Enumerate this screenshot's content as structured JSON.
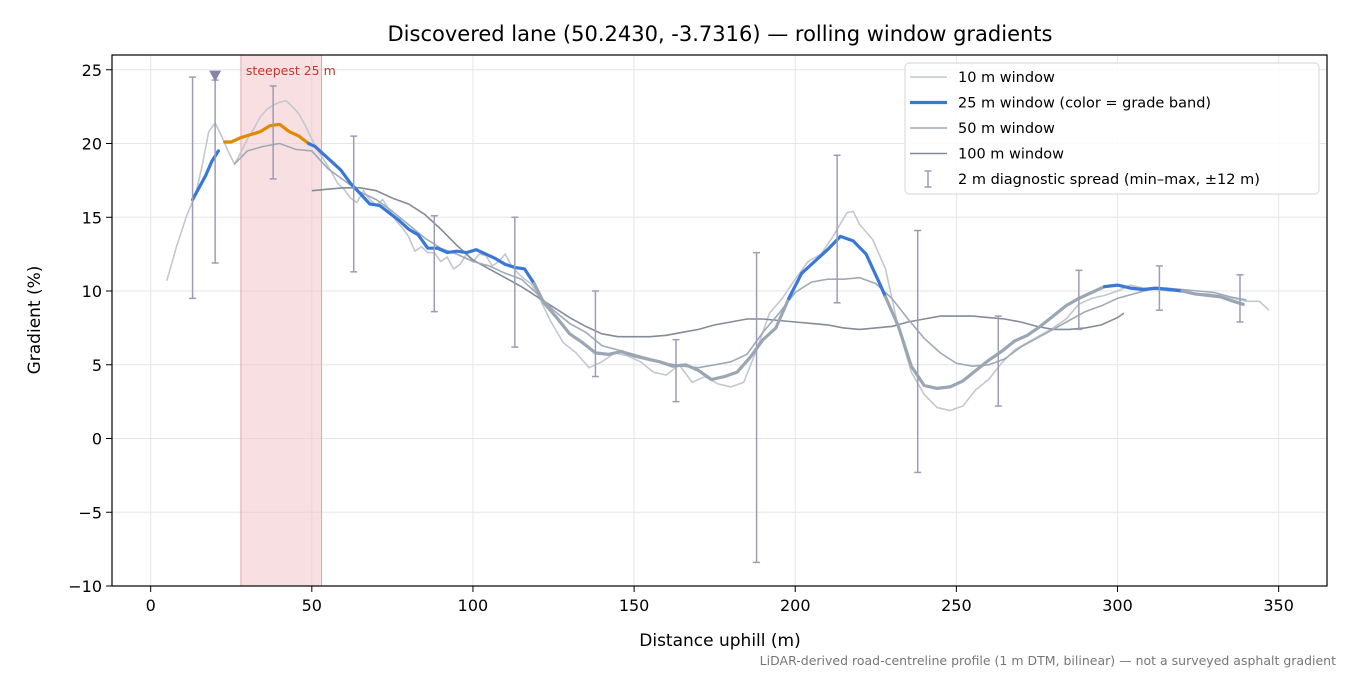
{
  "chart_data": {
    "type": "line",
    "title": "Discovered lane (50.2430, -3.7316) — rolling window gradients",
    "xlabel": "Distance uphill (m)",
    "ylabel": "Gradient (%)",
    "xlim": [
      -12,
      365
    ],
    "ylim": [
      -10,
      26
    ],
    "xticks": [
      0,
      50,
      100,
      150,
      200,
      250,
      300,
      350
    ],
    "yticks": [
      -10,
      -5,
      0,
      5,
      10,
      15,
      20,
      25
    ],
    "ytick_labels": [
      "−10",
      "−5",
      "0",
      "5",
      "10",
      "15",
      "20",
      "25"
    ],
    "grid": true,
    "legend_position": "top-right",
    "footer": "LiDAR-derived road-centreline profile (1 m DTM, bilinear) — not a surveyed asphalt gradient",
    "colors": {
      "w10": "#c3c7ce",
      "w25_blue": "#3a78d8",
      "w25_orange": "#e08a00",
      "w25_grey": "#9aa6b4",
      "w50": "#a0aab6",
      "w100": "#848b99",
      "errorbar": "#9c9cb8",
      "highlight": "#f2c6cb",
      "highlight_edge": "#e8a3aa",
      "marker": "#8a82a8"
    },
    "highlight": {
      "x_start": 28,
      "x_end": 53,
      "label": "steepest 25 m"
    },
    "marker": {
      "x": 20,
      "y": 24.6
    },
    "series": [
      {
        "name": "10 m window",
        "x": [
          5,
          8,
          11,
          14,
          16,
          18,
          20,
          22,
          24,
          26,
          28,
          30,
          32,
          34,
          36,
          38,
          40,
          42,
          44,
          46,
          48,
          50,
          52,
          54,
          56,
          58,
          60,
          62,
          64,
          66,
          68,
          70,
          72,
          74,
          76,
          78,
          80,
          82,
          84,
          86,
          88,
          90,
          92,
          94,
          96,
          98,
          100,
          102,
          104,
          106,
          108,
          110,
          112,
          114,
          116,
          118,
          120,
          124,
          128,
          132,
          136,
          140,
          144,
          148,
          152,
          156,
          160,
          164,
          168,
          172,
          176,
          180,
          184,
          188,
          192,
          196,
          200,
          204,
          208,
          212,
          216,
          218,
          220,
          224,
          228,
          232,
          236,
          240,
          244,
          248,
          252,
          256,
          260,
          264,
          268,
          272,
          276,
          280,
          284,
          288,
          292,
          296,
          300,
          304,
          308,
          312,
          316,
          320,
          324,
          328,
          332,
          336,
          340,
          344,
          347
        ],
        "y": [
          10.7,
          13,
          15,
          16.6,
          18.5,
          20.8,
          21.4,
          20.5,
          19.5,
          18.6,
          19.4,
          20.3,
          21,
          21.8,
          22.3,
          22.6,
          22.8,
          22.9,
          22.5,
          22,
          21.2,
          20.3,
          19.5,
          18.8,
          18.1,
          17.3,
          16.9,
          16.3,
          16,
          16.8,
          16.2,
          15.8,
          16.2,
          15.5,
          14.8,
          14.3,
          13.7,
          12.7,
          13,
          12.6,
          12.6,
          12,
          12.3,
          11.5,
          11.8,
          12.5,
          12,
          12.5,
          12.4,
          11.7,
          12,
          12.5,
          11.7,
          11.2,
          10.8,
          10.5,
          9.8,
          8,
          6.5,
          5.8,
          4.8,
          5.2,
          5.8,
          5.6,
          5.2,
          4.5,
          4.3,
          5,
          3.8,
          4.2,
          3.7,
          3.5,
          3.8,
          6,
          8.5,
          9.5,
          10.8,
          12,
          12.5,
          13.8,
          15.3,
          15.4,
          14.5,
          13.5,
          11.5,
          7.5,
          4.5,
          3,
          2.1,
          1.9,
          2.2,
          3.3,
          4,
          5.1,
          6,
          6.5,
          7,
          7.5,
          8.1,
          9.1,
          9.5,
          9.7,
          10,
          10.4,
          10.2,
          10.1,
          10,
          10,
          9.8,
          9.8,
          9.7,
          9.5,
          9.3,
          9.3,
          8.7
        ]
      },
      {
        "name": "25 m window (color = grade band)",
        "x": [
          13,
          15,
          17,
          19,
          21,
          23,
          25,
          28,
          31,
          34,
          37,
          40,
          43,
          46,
          49,
          51,
          53,
          56,
          59,
          62,
          65,
          68,
          71,
          74,
          77,
          80,
          83,
          86,
          89,
          92,
          95,
          98,
          101,
          104,
          107,
          110,
          113,
          116,
          119,
          122,
          126,
          130,
          134,
          138,
          142,
          146,
          150,
          154,
          158,
          162,
          166,
          170,
          174,
          178,
          182,
          186,
          190,
          194,
          198,
          202,
          206,
          210,
          214,
          218,
          222,
          226,
          228,
          232,
          236,
          240,
          244,
          248,
          252,
          256,
          260,
          264,
          268,
          272,
          276,
          280,
          284,
          288,
          292,
          296,
          300,
          304,
          308,
          312,
          316,
          320,
          324,
          328,
          332,
          336,
          339
        ],
        "y": [
          16.2,
          17,
          17.8,
          18.8,
          19.5,
          20.1,
          20.1,
          20.4,
          20.6,
          20.8,
          21.2,
          21.3,
          20.8,
          20.5,
          20,
          19.8,
          19.4,
          18.8,
          18.2,
          17.3,
          16.6,
          15.9,
          15.8,
          15.3,
          14.8,
          14.2,
          13.8,
          12.9,
          12.9,
          12.6,
          12.7,
          12.6,
          12.8,
          12.5,
          12.2,
          11.8,
          11.6,
          11.5,
          10.5,
          9.2,
          8.2,
          7.1,
          6.5,
          5.8,
          5.7,
          5.9,
          5.6,
          5.4,
          5.2,
          4.9,
          5,
          4.6,
          4,
          4.2,
          4.5,
          5.5,
          6.7,
          7.5,
          9.5,
          11.2,
          12,
          12.8,
          13.7,
          13.4,
          12.5,
          10.6,
          9.6,
          7.6,
          4.9,
          3.6,
          3.4,
          3.5,
          3.9,
          4.6,
          5.3,
          5.9,
          6.6,
          7,
          7.6,
          8.3,
          9,
          9.5,
          9.9,
          10.3,
          10.4,
          10.2,
          10.1,
          10.2,
          10.1,
          10,
          9.8,
          9.7,
          9.6,
          9.3,
          9.1
        ],
        "bands": [
          {
            "from": 13,
            "to": 22,
            "color": "blue"
          },
          {
            "from": 22,
            "to": 49,
            "color": "orange"
          },
          {
            "from": 49,
            "to": 119,
            "color": "blue"
          },
          {
            "from": 119,
            "to": 198,
            "color": "grey"
          },
          {
            "from": 198,
            "to": 228,
            "color": "blue"
          },
          {
            "from": 228,
            "to": 296,
            "color": "grey"
          },
          {
            "from": 296,
            "to": 320,
            "color": "blue"
          },
          {
            "from": 320,
            "to": 339,
            "color": "grey"
          }
        ]
      },
      {
        "name": "50 m window",
        "x": [
          26,
          30,
          35,
          40,
          45,
          50,
          55,
          60,
          65,
          70,
          75,
          80,
          85,
          90,
          95,
          100,
          105,
          110,
          115,
          120,
          125,
          130,
          135,
          140,
          145,
          150,
          155,
          160,
          165,
          170,
          175,
          180,
          185,
          190,
          195,
          200,
          205,
          210,
          215,
          220,
          225,
          230,
          235,
          240,
          245,
          250,
          255,
          260,
          265,
          270,
          275,
          280,
          285,
          290,
          295,
          300,
          305,
          310,
          315,
          320,
          325,
          330,
          335,
          340
        ],
        "y": [
          18.6,
          19.5,
          19.8,
          20,
          19.6,
          19.5,
          18.3,
          17.5,
          16.7,
          16.2,
          15.4,
          14.5,
          13.6,
          12.9,
          12.5,
          12,
          11.7,
          11.2,
          10.8,
          9.8,
          8.7,
          7.8,
          7.2,
          6.3,
          6,
          5.7,
          5.4,
          5.1,
          4.9,
          4.8,
          5,
          5.2,
          5.7,
          7.2,
          8.5,
          9.9,
          10.6,
          10.8,
          10.8,
          10.9,
          10.5,
          9.5,
          8.1,
          6.8,
          5.8,
          5.1,
          4.9,
          5,
          5.4,
          6.2,
          6.8,
          7.4,
          8,
          8.6,
          9,
          9.5,
          9.8,
          10.1,
          10.2,
          10.1,
          10,
          9.9,
          9.6,
          9.4
        ]
      },
      {
        "name": "100 m window",
        "x": [
          50,
          55,
          60,
          65,
          70,
          75,
          80,
          85,
          90,
          95,
          100,
          105,
          110,
          115,
          120,
          125,
          130,
          135,
          140,
          145,
          150,
          155,
          160,
          165,
          170,
          175,
          180,
          185,
          190,
          195,
          200,
          205,
          210,
          215,
          220,
          225,
          230,
          235,
          240,
          245,
          250,
          255,
          260,
          265,
          270,
          275,
          280,
          285,
          290,
          295,
          300,
          302
        ],
        "y": [
          16.8,
          16.9,
          17,
          17,
          16.8,
          16.3,
          15.9,
          15.2,
          14.2,
          13.1,
          12.1,
          11.5,
          10.9,
          10.3,
          9.6,
          8.9,
          8.2,
          7.6,
          7.1,
          6.9,
          6.9,
          6.9,
          7,
          7.2,
          7.4,
          7.7,
          7.9,
          8.1,
          8.1,
          8,
          7.9,
          7.8,
          7.7,
          7.5,
          7.4,
          7.5,
          7.6,
          7.9,
          8.1,
          8.3,
          8.3,
          8.3,
          8.2,
          8.1,
          7.9,
          7.6,
          7.4,
          7.4,
          7.5,
          7.7,
          8.2,
          8.5
        ]
      },
      {
        "name": "2 m diagnostic spread (min–max, ±12 m)",
        "x": [
          13,
          20,
          38,
          63,
          88,
          113,
          138,
          163,
          188,
          213,
          238,
          263,
          288,
          313,
          338
        ],
        "low": [
          9.5,
          11.9,
          17.6,
          11.3,
          8.6,
          6.2,
          4.2,
          2.5,
          -8.4,
          9.2,
          -2.3,
          2.2,
          7.4,
          8.7,
          7.9
        ],
        "high": [
          24.5,
          24.3,
          23.9,
          20.5,
          15.1,
          15,
          10,
          6.7,
          12.6,
          19.2,
          14.1,
          8.3,
          11.4,
          11.7,
          11.1
        ]
      }
    ]
  }
}
